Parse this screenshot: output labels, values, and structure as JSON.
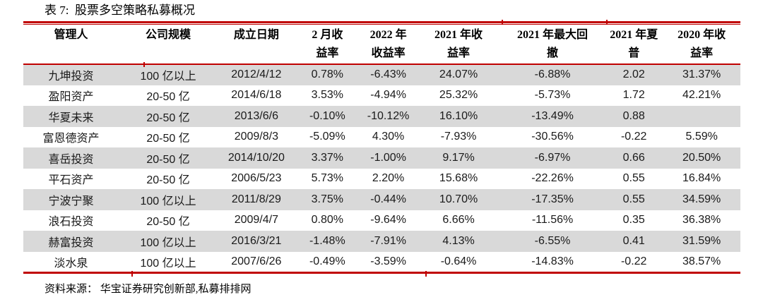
{
  "title": "表 7:  股票多空策略私募概况",
  "source_note": "资料来源： 华宝证券研究创新部,私募排排网",
  "colors": {
    "accent_red": "#C00000",
    "stripe_gray": "#D9D9D9"
  },
  "table": {
    "columns": [
      {
        "line1": "管理人",
        "line2": ""
      },
      {
        "line1": "公司规模",
        "line2": ""
      },
      {
        "line1": "成立日期",
        "line2": ""
      },
      {
        "line1": "2 月收",
        "line2": "益率"
      },
      {
        "line1": "2022 年",
        "line2": "收益率"
      },
      {
        "line1": "2021 年收",
        "line2": "益率"
      },
      {
        "line1": "2021 年最大回",
        "line2": "撤"
      },
      {
        "line1": "2021 年夏",
        "line2": "普"
      },
      {
        "line1": "2020 年收",
        "line2": "益率"
      }
    ],
    "rows": [
      [
        "九坤投资",
        "100 亿以上",
        "2012/4/12",
        "0.78%",
        "-6.43%",
        "24.07%",
        "-6.88%",
        "2.02",
        "31.37%"
      ],
      [
        "盈阳资产",
        "20-50 亿",
        "2014/6/18",
        "3.53%",
        "-4.94%",
        "25.32%",
        "-5.73%",
        "1.72",
        "42.21%"
      ],
      [
        "华夏未来",
        "20-50 亿",
        "2013/6/6",
        "-0.10%",
        "-10.12%",
        "16.10%",
        "-13.49%",
        "0.88",
        ""
      ],
      [
        "富恩德资产",
        "20-50 亿",
        "2009/8/3",
        "-5.09%",
        "4.30%",
        "-7.93%",
        "-30.56%",
        "-0.22",
        "5.59%"
      ],
      [
        "喜岳投资",
        "20-50 亿",
        "2014/10/20",
        "3.37%",
        "-1.00%",
        "9.17%",
        "-6.97%",
        "0.66",
        "20.50%"
      ],
      [
        "平石资产",
        "20-50 亿",
        "2006/5/23",
        "5.73%",
        "2.20%",
        "15.68%",
        "-22.26%",
        "0.55",
        "16.84%"
      ],
      [
        "宁波宁聚",
        "100 亿以上",
        "2011/8/29",
        "3.75%",
        "-0.44%",
        "10.70%",
        "-17.35%",
        "0.55",
        "34.59%"
      ],
      [
        "浪石投资",
        "20-50 亿",
        "2009/4/7",
        "0.80%",
        "-9.64%",
        "6.66%",
        "-11.56%",
        "0.35",
        "36.38%"
      ],
      [
        "赫富投资",
        "100 亿以上",
        "2016/3/21",
        "-1.48%",
        "-7.91%",
        "4.13%",
        "-6.55%",
        "0.41",
        "31.59%"
      ],
      [
        "淡水泉",
        "100 亿以上",
        "2007/6/26",
        "-0.49%",
        "-3.59%",
        "-0.64%",
        "-14.83%",
        "-0.22",
        "38.57%"
      ]
    ]
  }
}
